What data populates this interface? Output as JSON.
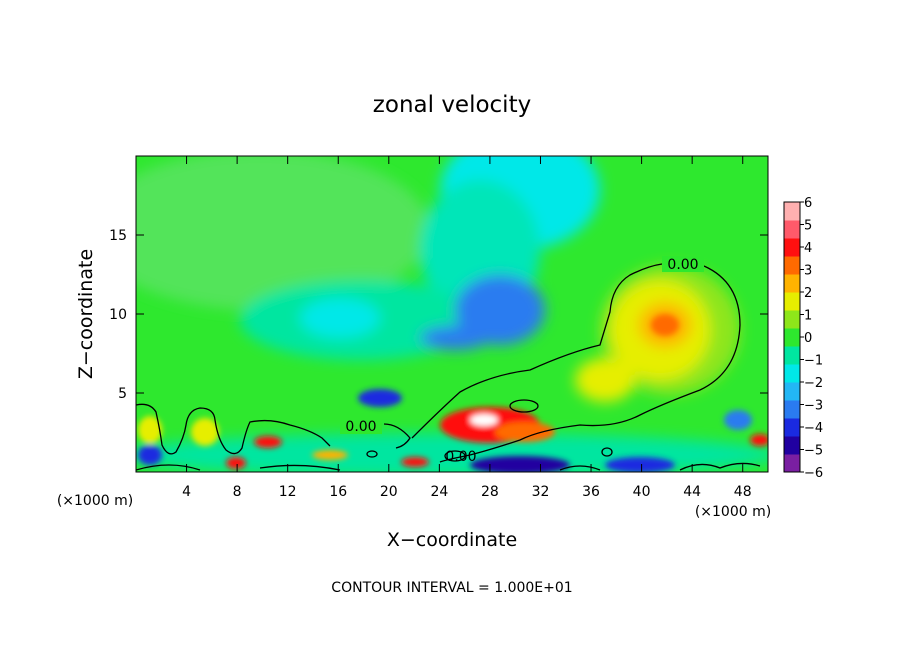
{
  "chart_data": {
    "type": "heatmap",
    "title": "zonal velocity",
    "xlabel": "X−coordinate",
    "ylabel": "Z−coordinate",
    "x_unit_left": "(×1000 m)",
    "x_unit_right": "(×1000 m)",
    "footer": "CONTOUR INTERVAL = 1.000E+01",
    "xlim": [
      0,
      50
    ],
    "ylim": [
      0,
      20
    ],
    "xticks": [
      4,
      8,
      12,
      16,
      20,
      24,
      28,
      32,
      36,
      40,
      44,
      48
    ],
    "yticks": [
      5,
      10,
      15
    ],
    "xtick_labels": [
      "4",
      "8",
      "12",
      "16",
      "20",
      "24",
      "28",
      "32",
      "36",
      "40",
      "44",
      "48"
    ],
    "ytick_labels": [
      "5",
      "10",
      "15"
    ],
    "contour_labels": [
      "0.00",
      "0.00",
      "0.00"
    ],
    "colorbar": {
      "min": -6,
      "max": 6,
      "tick_labels": [
        "6",
        "5",
        "4",
        "3",
        "2",
        "1",
        "0",
        "−1",
        "−2",
        "−3",
        "−4",
        "−5",
        "−6"
      ],
      "colors": [
        "#7a1fa2",
        "#2000a0",
        "#1a2ae0",
        "#2a7bf0",
        "#23b7f5",
        "#00e8e8",
        "#00e6a0",
        "#2ee82e",
        "#8ee61a",
        "#e6ee00",
        "#ffb300",
        "#ff6a00",
        "#ff1010",
        "#ff5a6a",
        "#ffb0b0"
      ]
    },
    "features": [
      {
        "x": 9,
        "z": 0.3,
        "value": 4
      },
      {
        "x": 27,
        "z": 3,
        "value": 5.5
      },
      {
        "x": 27.5,
        "z": 2.7,
        "value": 6
      },
      {
        "x": 42,
        "z": 9,
        "value": 3
      },
      {
        "x": 39,
        "z": 5.5,
        "value": 1.5
      },
      {
        "x": 30,
        "z": 10.5,
        "value": -3.5
      },
      {
        "x": 18.5,
        "z": 4.5,
        "value": -3.5
      },
      {
        "x": 30,
        "z": 0.5,
        "value": -5
      },
      {
        "x": 44,
        "z": 0.4,
        "value": -4.5
      },
      {
        "x": 10,
        "z": 1.8,
        "value": 4
      }
    ]
  }
}
